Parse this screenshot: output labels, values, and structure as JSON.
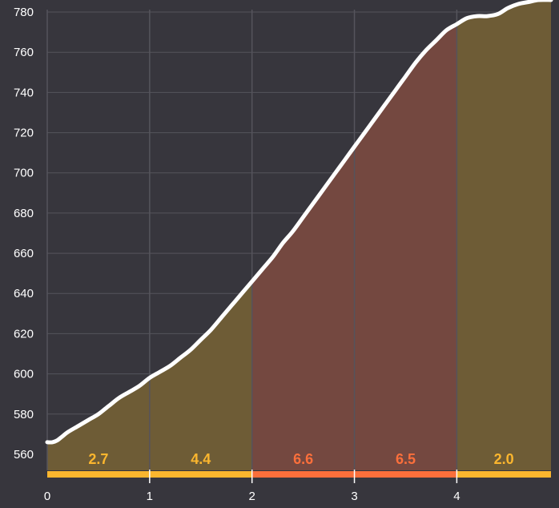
{
  "chart_data": {
    "type": "area",
    "title": "",
    "xlabel": "",
    "ylabel": "",
    "xlim": [
      0,
      4.92
    ],
    "ylim": [
      552,
      786
    ],
    "x_ticks": [
      0,
      1,
      2,
      3,
      4
    ],
    "y_ticks": [
      560,
      580,
      600,
      620,
      640,
      660,
      680,
      700,
      720,
      740,
      760,
      780
    ],
    "grid": true,
    "colors": {
      "background": "#37363d",
      "grid": "#55545c",
      "line": "#ffffff",
      "moderate": "#fbb62e",
      "steep": "#fb6f3b",
      "moderate_fill": "#6e5c36",
      "steep_fill": "#744840"
    },
    "elevation_profile": {
      "x": [
        0,
        0.05,
        0.1,
        0.15,
        0.2,
        0.3,
        0.4,
        0.5,
        0.6,
        0.7,
        0.8,
        0.9,
        1.0,
        1.1,
        1.2,
        1.3,
        1.4,
        1.5,
        1.6,
        1.7,
        1.8,
        1.9,
        2.0,
        2.1,
        2.2,
        2.3,
        2.4,
        2.5,
        2.6,
        2.7,
        2.8,
        2.9,
        3.0,
        3.1,
        3.2,
        3.3,
        3.4,
        3.5,
        3.6,
        3.7,
        3.8,
        3.9,
        4.0,
        4.1,
        4.2,
        4.3,
        4.4,
        4.5,
        4.6,
        4.7,
        4.8,
        4.92
      ],
      "y": [
        566,
        566,
        567,
        569,
        571,
        574,
        577,
        580,
        584,
        588,
        591,
        594,
        598,
        601,
        604,
        608,
        612,
        617,
        622,
        628,
        634,
        640,
        646,
        652,
        658,
        665,
        671,
        678,
        685,
        692,
        699,
        706,
        713,
        720,
        727,
        734,
        741,
        748,
        755,
        761,
        766,
        771,
        774,
        777,
        778,
        778,
        779,
        782,
        784,
        785,
        786,
        786
      ]
    },
    "segments": [
      {
        "start": 0,
        "end": 1,
        "grade": "2.7",
        "class": "moderate"
      },
      {
        "start": 1,
        "end": 2,
        "grade": "4.4",
        "class": "moderate"
      },
      {
        "start": 2,
        "end": 3,
        "grade": "6.6",
        "class": "steep"
      },
      {
        "start": 3,
        "end": 4,
        "grade": "6.5",
        "class": "steep"
      },
      {
        "start": 4,
        "end": 4.92,
        "grade": "2.0",
        "class": "moderate"
      }
    ]
  }
}
